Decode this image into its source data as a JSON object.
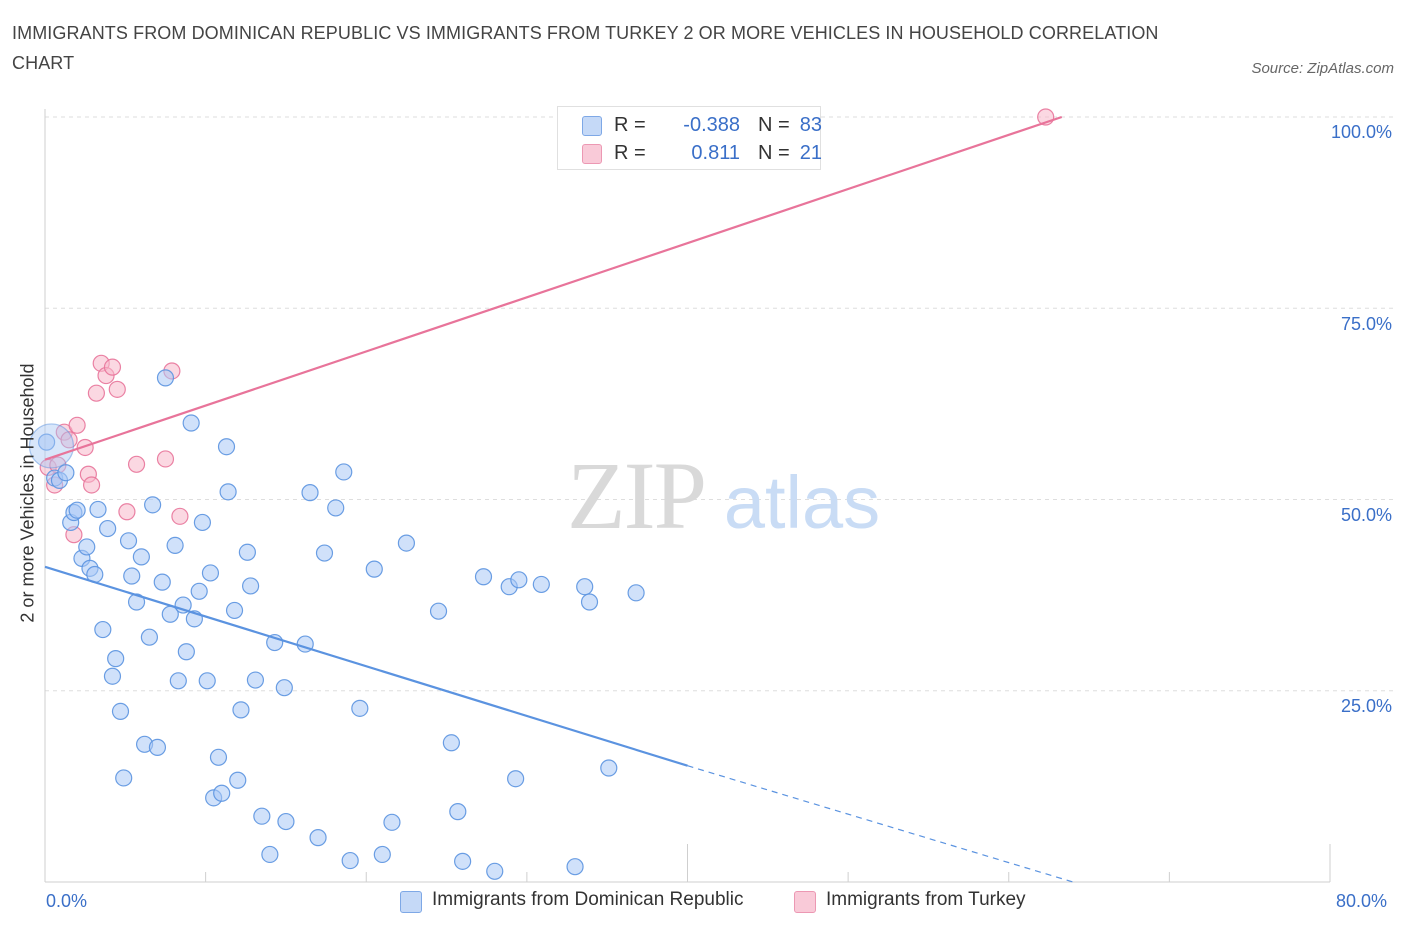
{
  "title": "IMMIGRANTS FROM DOMINICAN REPUBLIC VS IMMIGRANTS FROM TURKEY 2 OR MORE VEHICLES IN HOUSEHOLD CORRELATION CHART",
  "source": "Source: ZipAtlas.com",
  "watermark": {
    "zip": "ZIP",
    "atlas": "atlas"
  },
  "legend": {
    "rows": [
      {
        "r_label": "R =",
        "r_value": "-0.388",
        "n_label": "N =",
        "n_value": "83",
        "color": "#a9c8f5"
      },
      {
        "r_label": "R =",
        "r_value": "0.811",
        "n_label": "N =",
        "n_value": "21",
        "color": "#f7b8cb"
      }
    ]
  },
  "bottom_legend": [
    {
      "label": "Immigrants from Dominican Republic",
      "color": "#a9c8f5"
    },
    {
      "label": "Immigrants from Turkey",
      "color": "#f7b8cb"
    }
  ],
  "chart_data": {
    "type": "scatter",
    "title": "IMMIGRANTS FROM DOMINICAN REPUBLIC VS IMMIGRANTS FROM TURKEY 2 OR MORE VEHICLES IN HOUSEHOLD CORRELATION CHART",
    "xlabel": "",
    "ylabel": "2 or more Vehicles in Household",
    "xlim": [
      0,
      80
    ],
    "ylim": [
      0,
      100
    ],
    "x_tick_labels": [
      "0.0%",
      "80.0%"
    ],
    "y_ticks": [
      25,
      50,
      75,
      100
    ],
    "y_tick_labels": [
      "25.0%",
      "50.0%",
      "75.0%",
      "100.0%"
    ],
    "grid": true,
    "legend_position": "top-center",
    "series": [
      {
        "name": "Immigrants from Dominican Republic",
        "color": "#5b93e0",
        "fill": "#a9c8f5",
        "points": [
          [
            0.1,
            57.5
          ],
          [
            0.6,
            52.8
          ],
          [
            0.9,
            52.5
          ],
          [
            1.3,
            53.5
          ],
          [
            1.6,
            47.0
          ],
          [
            1.8,
            48.3
          ],
          [
            2.0,
            48.6
          ],
          [
            2.3,
            42.3
          ],
          [
            2.6,
            43.8
          ],
          [
            2.8,
            41.0
          ],
          [
            3.1,
            40.2
          ],
          [
            3.3,
            48.7
          ],
          [
            3.6,
            33.0
          ],
          [
            3.9,
            46.2
          ],
          [
            4.2,
            26.9
          ],
          [
            4.4,
            29.2
          ],
          [
            4.7,
            22.3
          ],
          [
            4.9,
            13.6
          ],
          [
            5.2,
            44.6
          ],
          [
            5.4,
            40.0
          ],
          [
            5.7,
            36.6
          ],
          [
            6.0,
            42.5
          ],
          [
            6.2,
            18.0
          ],
          [
            6.5,
            32.0
          ],
          [
            6.7,
            49.3
          ],
          [
            7.0,
            17.6
          ],
          [
            7.3,
            39.2
          ],
          [
            7.5,
            65.9
          ],
          [
            7.8,
            35.0
          ],
          [
            8.1,
            44.0
          ],
          [
            8.3,
            26.3
          ],
          [
            8.6,
            36.2
          ],
          [
            8.8,
            30.1
          ],
          [
            9.1,
            60.0
          ],
          [
            9.3,
            34.4
          ],
          [
            9.6,
            38.0
          ],
          [
            9.8,
            47.0
          ],
          [
            10.1,
            26.3
          ],
          [
            10.3,
            40.4
          ],
          [
            10.5,
            11.0
          ],
          [
            10.8,
            16.3
          ],
          [
            11.0,
            11.6
          ],
          [
            11.3,
            56.9
          ],
          [
            11.4,
            51.0
          ],
          [
            11.8,
            35.5
          ],
          [
            12.0,
            13.3
          ],
          [
            12.2,
            22.5
          ],
          [
            12.6,
            43.1
          ],
          [
            12.8,
            38.7
          ],
          [
            13.1,
            26.4
          ],
          [
            13.5,
            8.6
          ],
          [
            14.0,
            3.6
          ],
          [
            14.3,
            31.3
          ],
          [
            14.9,
            25.4
          ],
          [
            15.0,
            7.9
          ],
          [
            16.2,
            31.1
          ],
          [
            16.5,
            50.9
          ],
          [
            17.0,
            5.8
          ],
          [
            17.4,
            43.0
          ],
          [
            18.1,
            48.9
          ],
          [
            18.6,
            53.6
          ],
          [
            19.0,
            2.8
          ],
          [
            19.6,
            22.7
          ],
          [
            20.5,
            40.9
          ],
          [
            21.0,
            3.6
          ],
          [
            21.6,
            7.8
          ],
          [
            22.5,
            44.3
          ],
          [
            24.5,
            35.4
          ],
          [
            25.3,
            18.2
          ],
          [
            25.7,
            9.2
          ],
          [
            26.0,
            2.7
          ],
          [
            27.3,
            39.9
          ],
          [
            28.0,
            1.4
          ],
          [
            28.9,
            38.6
          ],
          [
            29.3,
            13.5
          ],
          [
            29.5,
            39.5
          ],
          [
            30.9,
            38.9
          ],
          [
            33.0,
            2.0
          ],
          [
            33.6,
            38.6
          ],
          [
            33.9,
            36.6
          ],
          [
            35.1,
            14.9
          ],
          [
            36.8,
            37.8
          ],
          [
            0.4,
            57.0
          ]
        ],
        "trend": {
          "x": [
            0,
            40
          ],
          "y": [
            41.2,
            15.2
          ],
          "dashed_extension_x": [
            40,
            64
          ],
          "dashed_extension_y": [
            15.2,
            0
          ]
        }
      },
      {
        "name": "Immigrants from Turkey",
        "color": "#e8749a",
        "fill": "#f7b8cb",
        "points": [
          [
            0.2,
            54.2
          ],
          [
            0.6,
            51.9
          ],
          [
            0.8,
            54.5
          ],
          [
            1.2,
            58.8
          ],
          [
            1.5,
            57.8
          ],
          [
            1.8,
            45.4
          ],
          [
            2.0,
            59.7
          ],
          [
            2.5,
            56.8
          ],
          [
            2.7,
            53.3
          ],
          [
            2.9,
            51.9
          ],
          [
            3.2,
            63.9
          ],
          [
            3.5,
            67.8
          ],
          [
            3.8,
            66.2
          ],
          [
            4.2,
            67.3
          ],
          [
            4.5,
            64.4
          ],
          [
            5.1,
            48.4
          ],
          [
            5.7,
            54.6
          ],
          [
            7.5,
            55.3
          ],
          [
            7.9,
            66.8
          ],
          [
            8.4,
            47.8
          ],
          [
            62.3,
            100.0
          ]
        ],
        "trend": {
          "x": [
            0,
            63.3
          ],
          "y": [
            55.2,
            100.0
          ]
        }
      }
    ]
  }
}
